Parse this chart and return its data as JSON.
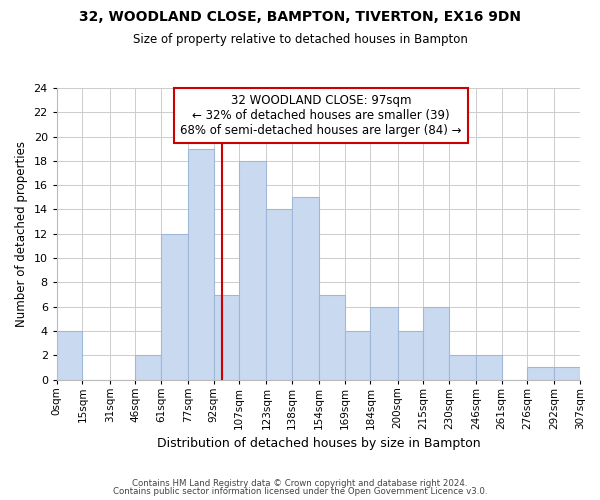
{
  "title1": "32, WOODLAND CLOSE, BAMPTON, TIVERTON, EX16 9DN",
  "title2": "Size of property relative to detached houses in Bampton",
  "xlabel": "Distribution of detached houses by size in Bampton",
  "ylabel": "Number of detached properties",
  "bin_labels": [
    "0sqm",
    "15sqm",
    "31sqm",
    "46sqm",
    "61sqm",
    "77sqm",
    "92sqm",
    "107sqm",
    "123sqm",
    "138sqm",
    "154sqm",
    "169sqm",
    "184sqm",
    "200sqm",
    "215sqm",
    "230sqm",
    "246sqm",
    "261sqm",
    "276sqm",
    "292sqm",
    "307sqm"
  ],
  "bin_edges": [
    0,
    15,
    31,
    46,
    61,
    77,
    92,
    107,
    123,
    138,
    154,
    169,
    184,
    200,
    215,
    230,
    246,
    261,
    276,
    292,
    307
  ],
  "bar_heights": [
    4,
    0,
    0,
    2,
    12,
    19,
    7,
    18,
    14,
    15,
    7,
    4,
    6,
    4,
    6,
    2,
    2,
    0,
    1,
    1
  ],
  "bar_color": "#c9d9f0",
  "bar_edge_color": "#a0b8d8",
  "reference_line_x": 97,
  "reference_line_color": "#cc0000",
  "annotation_line1": "32 WOODLAND CLOSE: 97sqm",
  "annotation_line2": "← 32% of detached houses are smaller (39)",
  "annotation_line3": "68% of semi-detached houses are larger (84) →",
  "annotation_box_edge_color": "#cc0000",
  "ylim": [
    0,
    24
  ],
  "yticks": [
    0,
    2,
    4,
    6,
    8,
    10,
    12,
    14,
    16,
    18,
    20,
    22,
    24
  ],
  "footer_line1": "Contains HM Land Registry data © Crown copyright and database right 2024.",
  "footer_line2": "Contains public sector information licensed under the Open Government Licence v3.0.",
  "background_color": "#ffffff",
  "grid_color": "#cccccc"
}
